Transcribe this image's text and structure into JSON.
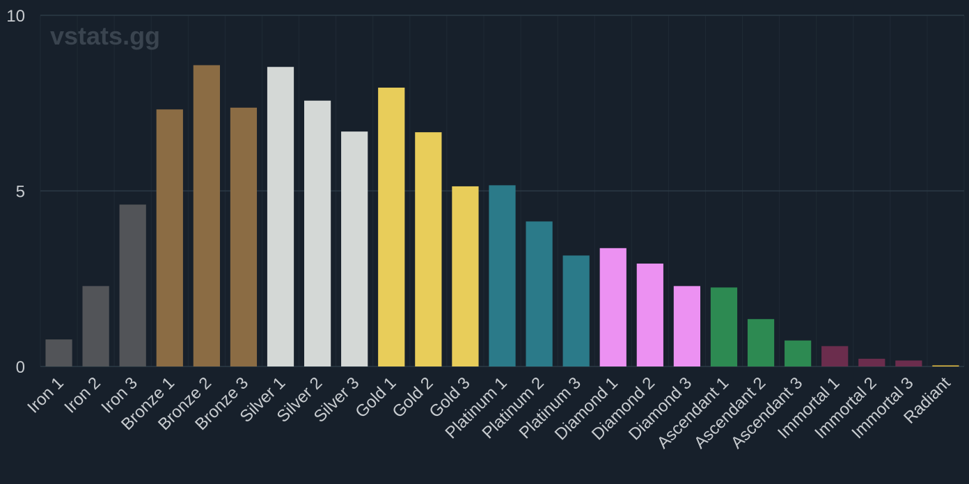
{
  "watermark": "vstats.gg",
  "chart_data": {
    "type": "bar",
    "title": "",
    "xlabel": "",
    "ylabel": "",
    "ylim": [
      0,
      10
    ],
    "yticks": [
      0,
      5,
      10
    ],
    "grid": "horizontal",
    "categories": [
      "Iron 1",
      "Iron 2",
      "Iron 3",
      "Bronze 1",
      "Bronze 2",
      "Bronze 3",
      "Silver 1",
      "Silver 2",
      "Silver 3",
      "Gold 1",
      "Gold 2",
      "Gold 3",
      "Platinum 1",
      "Platinum 2",
      "Platinum 3",
      "Diamond 1",
      "Diamond 2",
      "Diamond 3",
      "Ascendant 1",
      "Ascendant 2",
      "Ascendant 3",
      "Immortal 1",
      "Immortal 2",
      "Immortal 3",
      "Radiant"
    ],
    "values": [
      0.77,
      2.29,
      4.61,
      7.32,
      8.58,
      7.37,
      8.53,
      7.57,
      6.69,
      7.94,
      6.67,
      5.13,
      5.16,
      4.13,
      3.16,
      3.37,
      2.93,
      2.29,
      2.25,
      1.35,
      0.74,
      0.58,
      0.22,
      0.17,
      0.03
    ],
    "colors": [
      "#525458",
      "#525458",
      "#525458",
      "#8b6c44",
      "#8b6c44",
      "#8b6c44",
      "#d4d8d6",
      "#d4d8d6",
      "#d4d8d6",
      "#e8cd5a",
      "#e8cd5a",
      "#e8cd5a",
      "#2b7a89",
      "#2b7a89",
      "#2b7a89",
      "#ec91f2",
      "#ec91f2",
      "#ec91f2",
      "#2d8a52",
      "#2d8a52",
      "#2d8a52",
      "#6b2d4d",
      "#6b2d4d",
      "#6b2d4d",
      "#e8c040"
    ]
  }
}
